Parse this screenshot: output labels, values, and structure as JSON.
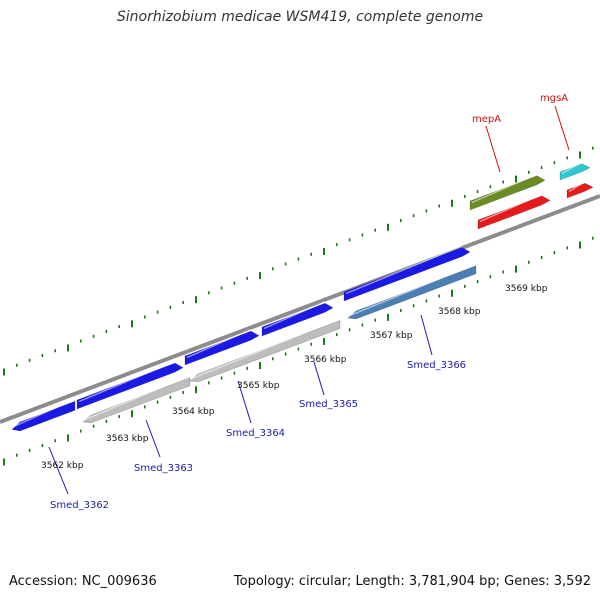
{
  "title": "Sinorhizobium medicae WSM419, complete genome",
  "accession": "Accession: NC_009636",
  "summary": "Topology: circular; Length: 3,781,904 bp; Genes: 3,592",
  "colors": {
    "backbone": "#8c8c8c",
    "tick": "#1a7a1a",
    "cds_blue": "#1a1ae6",
    "cds_grey": "#bdbdbd",
    "cds_steel": "#4a7fb5",
    "cds_olive": "#6b8c23",
    "cds_red": "#e61a1a",
    "cds_cyan": "#2ec8d2",
    "label_blue": "#1a1ab4",
    "label_red": "#cc1111"
  },
  "ruler": [
    {
      "label": "3562 kbp"
    },
    {
      "label": "3563 kbp"
    },
    {
      "label": "3564 kbp"
    },
    {
      "label": "3565 kbp"
    },
    {
      "label": "3566 kbp"
    },
    {
      "label": "3567 kbp"
    },
    {
      "label": "3568 kbp"
    },
    {
      "label": "3569 kbp"
    }
  ],
  "gene_labels": [
    {
      "label": "Smed_3362",
      "color": "blue"
    },
    {
      "label": "Smed_3363",
      "color": "blue"
    },
    {
      "label": "Smed_3364",
      "color": "blue"
    },
    {
      "label": "Smed_3365",
      "color": "blue"
    },
    {
      "label": "Smed_3366",
      "color": "blue"
    },
    {
      "label": "mepA",
      "color": "red"
    },
    {
      "label": "mgsA",
      "color": "red"
    }
  ]
}
